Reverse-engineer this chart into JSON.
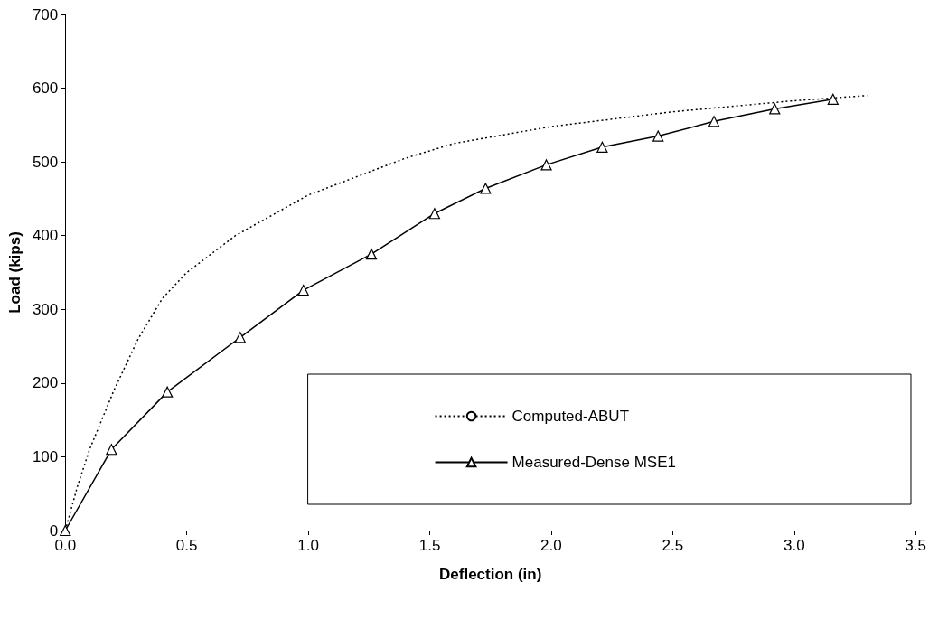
{
  "chart_data": {
    "type": "line",
    "xlabel": "Deflection (in)",
    "ylabel": "Load (kips)",
    "xlim": [
      0,
      3.5
    ],
    "xticks": [
      {
        "value": 0,
        "label": "0.0"
      },
      {
        "value": 0.5,
        "label": "0.5"
      },
      {
        "value": 1,
        "label": "1.0"
      },
      {
        "value": 1.5,
        "label": "1.5"
      },
      {
        "value": 2,
        "label": "2.0"
      },
      {
        "value": 2.5,
        "label": "2.5"
      },
      {
        "value": 3,
        "label": "3.0"
      },
      {
        "value": 3.5,
        "label": "3.5"
      }
    ],
    "ylim": [
      0,
      700
    ],
    "yticks": [
      0,
      100,
      200,
      300,
      400,
      500,
      600,
      700
    ],
    "grid": false,
    "legend": "bottom right",
    "series": [
      {
        "name": "Computed-ABUT",
        "color": "#000000",
        "line_style": "dotted",
        "marker": "none",
        "x": [
          0,
          0.05,
          0.1,
          0.2,
          0.3,
          0.4,
          0.5,
          0.7,
          1.0,
          1.2,
          1.4,
          1.6,
          2.0,
          2.5,
          3.0,
          3.3
        ],
        "values": [
          0,
          60,
          110,
          190,
          260,
          315,
          350,
          400,
          455,
          480,
          505,
          525,
          548,
          568,
          583,
          590
        ]
      },
      {
        "name": "Measured-Dense MSE1",
        "color": "#000000",
        "line_style": "solid",
        "marker": "triangle",
        "x": [
          0,
          0.19,
          0.42,
          0.72,
          0.98,
          1.26,
          1.52,
          1.73,
          1.98,
          2.21,
          2.44,
          2.67,
          2.92,
          3.16
        ],
        "values": [
          0,
          110,
          188,
          262,
          326,
          375,
          430,
          464,
          496,
          520,
          535,
          555,
          572,
          585
        ]
      }
    ]
  }
}
